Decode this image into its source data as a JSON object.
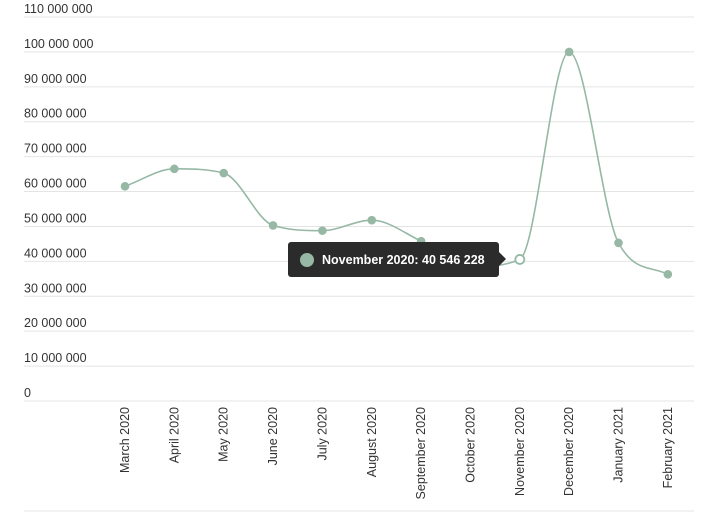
{
  "chart_data": {
    "type": "line",
    "title": "",
    "xlabel": "",
    "ylabel": "",
    "categories": [
      "March 2020",
      "April 2020",
      "May 2020",
      "June 2020",
      "July 2020",
      "August 2020",
      "September 2020",
      "October 2020",
      "November 2020",
      "December 2020",
      "January 2021",
      "February 2021"
    ],
    "series": [
      {
        "values": [
          61500000,
          66500000,
          65300000,
          50300000,
          48800000,
          51800000,
          45800000,
          38500000,
          40546228,
          100000000,
          45300000,
          36300000
        ],
        "color": "#96b8a5"
      }
    ],
    "ylim": [
      0,
      110000000
    ],
    "y_ticks": [
      0,
      10000000,
      20000000,
      30000000,
      40000000,
      50000000,
      60000000,
      70000000,
      80000000,
      90000000,
      100000000,
      110000000
    ],
    "y_tick_labels": [
      "0",
      "10 000 000",
      "20 000 000",
      "30 000 000",
      "40 000 000",
      "50 000 000",
      "60 000 000",
      "70 000 000",
      "80 000 000",
      "90 000 000",
      "100 000 000",
      "110 000 000"
    ],
    "grid": true,
    "legend": "none",
    "tooltip": {
      "text": "November 2020: 40 546 228",
      "category_index": 8
    },
    "colors": {
      "line": "#96b8a5",
      "marker": "#96b8a5",
      "grid": "#e4e4e4",
      "tooltip_bg": "#2b2b2b",
      "text": "#333333"
    }
  }
}
